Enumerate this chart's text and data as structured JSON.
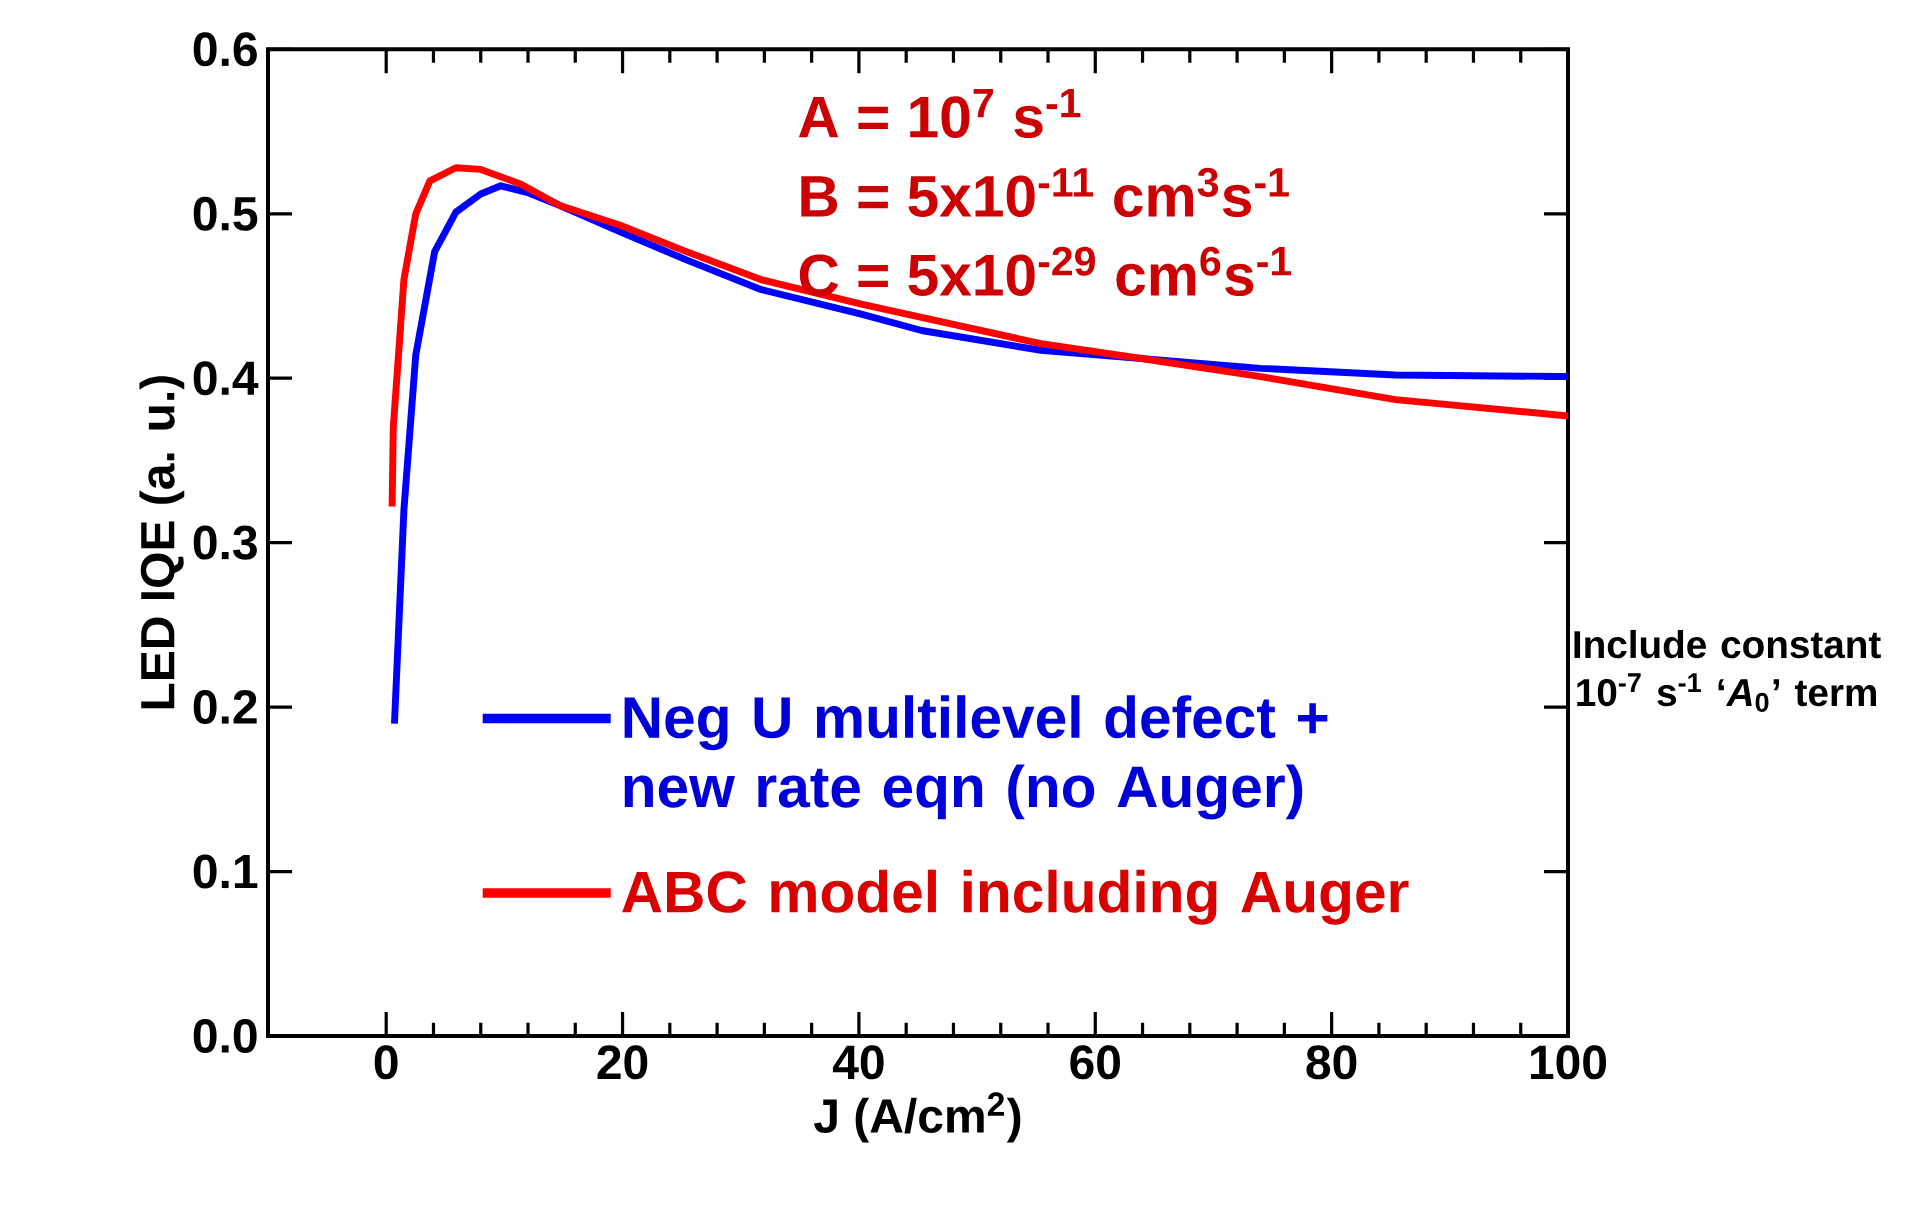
{
  "chart_data": {
    "type": "line",
    "xlabel": "J (A/cm$^{2}$)",
    "ylabel": "LED IQE (a. u.)",
    "xlim": [
      -10,
      100
    ],
    "ylim": [
      0,
      0.6
    ],
    "xticks": [
      0,
      20,
      40,
      60,
      80,
      100
    ],
    "yticks": [
      {
        "value": 0,
        "label": "0.0"
      },
      0.1,
      0.2,
      0.3,
      0.4,
      0.5,
      0.6
    ],
    "grid": false,
    "legend": "bottom",
    "marker": "none",
    "line_style": "solid",
    "annotations": [
      "A = 10$^{7}$ s$^{-1}$",
      "B = 5x10$^{-11}$ cm$^{3}$s$^{-1}$",
      "C = 5x10$^{-29}$ cm$^{6}$s$^{-1}$",
      "Include constant 10$^{-7}$ s$^{-1}$ ‘*A*$_{0}$’ term"
    ],
    "series": [
      {
        "name": "Neg U multilevel defect + new rate eqn  (no Auger)",
        "color": "#0000ff",
        "x": [
          0.7,
          1.5,
          2.5,
          4.1,
          5.9,
          8,
          9.7,
          11.9,
          14.7,
          19.8,
          25.4,
          31.7,
          40.2,
          45.3,
          55.4,
          74,
          85.4,
          100
        ],
        "values": [
          0.19,
          0.32,
          0.414,
          0.477,
          0.501,
          0.512,
          0.517,
          0.513,
          0.505,
          0.489,
          0.472,
          0.454,
          0.439,
          0.429,
          0.417,
          0.406,
          0.402,
          0.401
        ]
      },
      {
        "name": "ABC model including Auger",
        "color": "#ff0000",
        "x": [
          0.5,
          0.6,
          1.0,
          1.5,
          2.5,
          3.7,
          5.9,
          8,
          11.4,
          14.7,
          19.8,
          25.4,
          31.7,
          40.2,
          45.3,
          55.4,
          63.9,
          74,
          85.4,
          100
        ],
        "values": [
          0.322,
          0.37,
          0.41,
          0.46,
          0.5,
          0.52,
          0.528,
          0.527,
          0.518,
          0.505,
          0.493,
          0.477,
          0.46,
          0.445,
          0.437,
          0.421,
          0.412,
          0.401,
          0.387,
          0.377
        ]
      }
    ]
  }
}
